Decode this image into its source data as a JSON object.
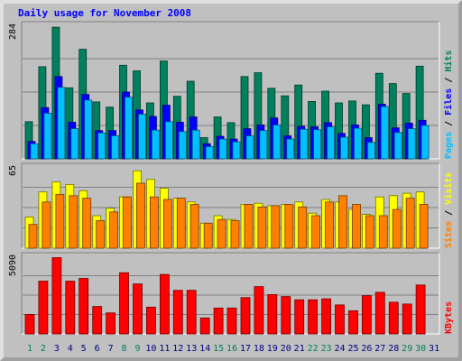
{
  "title": "Daily usage for November 2008",
  "colors": {
    "background": "#c0c0c0",
    "hits": "#00805c",
    "files": "#0000ff",
    "pages": "#00c0ff",
    "visits": "#ffff00",
    "sites": "#ff8000",
    "kbytes": "#ff0000",
    "title_text": "#0000ff",
    "weekend_day": "#00805c",
    "weekday": "#000080"
  },
  "chart_data": [
    {
      "type": "bar",
      "categories": [
        "1",
        "2",
        "3",
        "4",
        "5",
        "6",
        "7",
        "8",
        "9",
        "10",
        "11",
        "12",
        "13",
        "14",
        "15",
        "16",
        "17",
        "18",
        "19",
        "20",
        "21",
        "22",
        "23",
        "24",
        "25",
        "26",
        "27",
        "28",
        "29",
        "30",
        "31"
      ],
      "ymax_label": "284",
      "ylim": [
        0,
        284
      ],
      "series": [
        {
          "name": "Hits",
          "values": [
            79,
            196,
            280,
            151,
            233,
            121,
            110,
            199,
            187,
            119,
            208,
            133,
            165,
            45,
            89,
            77,
            175,
            183,
            150,
            134,
            157,
            122,
            144,
            119,
            123,
            115,
            182,
            160,
            139,
            197,
            0
          ]
        },
        {
          "name": "Files",
          "values": [
            37,
            109,
            175,
            78,
            137,
            60,
            60,
            142,
            104,
            90,
            114,
            78,
            89,
            32,
            48,
            42,
            64,
            72,
            87,
            49,
            69,
            68,
            77,
            54,
            72,
            45,
            116,
            66,
            76,
            82,
            0
          ]
        },
        {
          "name": "Pages",
          "values": [
            32,
            97,
            152,
            64,
            125,
            55,
            49,
            131,
            95,
            61,
            79,
            58,
            61,
            26,
            42,
            36,
            49,
            60,
            72,
            42,
            63,
            62,
            68,
            46,
            65,
            35,
            111,
            56,
            64,
            71,
            0
          ]
        }
      ],
      "legend": [
        "Pages",
        "Files",
        "Hits"
      ]
    },
    {
      "type": "bar",
      "categories": [
        "1",
        "2",
        "3",
        "4",
        "5",
        "6",
        "7",
        "8",
        "9",
        "10",
        "11",
        "12",
        "13",
        "14",
        "15",
        "16",
        "17",
        "18",
        "19",
        "20",
        "21",
        "22",
        "23",
        "24",
        "25",
        "26",
        "27",
        "28",
        "29",
        "30",
        "31"
      ],
      "ymax_label": "65",
      "ylim": [
        0,
        65
      ],
      "series": [
        {
          "name": "Visits",
          "values": [
            25,
            45,
            53,
            51,
            46,
            26,
            32,
            41,
            62,
            55,
            48,
            40,
            37,
            20,
            26,
            23,
            35,
            36,
            34,
            35,
            37,
            28,
            39,
            37,
            31,
            27,
            41,
            42,
            44,
            45,
            0
          ]
        },
        {
          "name": "Sites",
          "values": [
            19,
            37,
            43,
            42,
            40,
            22,
            29,
            41,
            52,
            41,
            39,
            40,
            35,
            20,
            23,
            22,
            35,
            33,
            34,
            35,
            33,
            26,
            37,
            42,
            35,
            26,
            26,
            31,
            40,
            35,
            0
          ]
        }
      ],
      "legend": [
        "Sites",
        "Visits"
      ]
    },
    {
      "type": "bar",
      "categories": [
        "1",
        "2",
        "3",
        "4",
        "5",
        "6",
        "7",
        "8",
        "9",
        "10",
        "11",
        "12",
        "13",
        "14",
        "15",
        "16",
        "17",
        "18",
        "19",
        "20",
        "21",
        "22",
        "23",
        "24",
        "25",
        "26",
        "27",
        "28",
        "29",
        "30",
        "31"
      ],
      "ymax_label": "5090",
      "ylim": [
        0,
        5090
      ],
      "series": [
        {
          "name": "KBytes",
          "values": [
            1280,
            3460,
            5000,
            3460,
            3640,
            1800,
            1380,
            4010,
            3280,
            1760,
            3900,
            2860,
            2860,
            1050,
            1700,
            1700,
            2380,
            3100,
            2580,
            2450,
            2240,
            2240,
            2300,
            1900,
            1520,
            2510,
            2730,
            2080,
            1960,
            3210,
            0
          ]
        }
      ],
      "legend": [
        "KBytes"
      ]
    }
  ]
}
